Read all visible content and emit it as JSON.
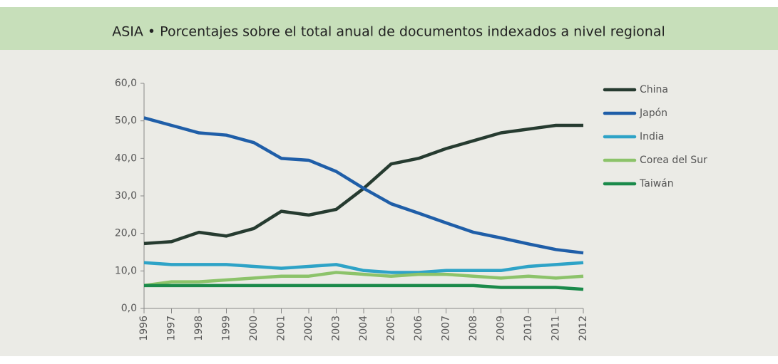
{
  "chart_data": {
    "type": "line",
    "title": "ASIA • Porcentajes sobre el total anual de documentos indexados a nivel regional",
    "categories": [
      "1996",
      "1997",
      "1998",
      "1999",
      "2000",
      "2001",
      "2002",
      "2003",
      "2004",
      "2005",
      "2006",
      "2007",
      "2008",
      "2009",
      "2010",
      "2011",
      "2012"
    ],
    "series": [
      {
        "name": "China",
        "color": "#263b30",
        "values": [
          17.3,
          17.8,
          20.3,
          19.3,
          21.3,
          25.9,
          24.9,
          26.4,
          32,
          38.5,
          40,
          42.6,
          44.7,
          46.8,
          47.8,
          48.8,
          48.8
        ]
      },
      {
        "name": "Japón",
        "color": "#1f5ea8",
        "values": [
          50.8,
          48.8,
          46.8,
          46.2,
          44.2,
          40,
          39.5,
          36.5,
          32,
          27.9,
          25.4,
          22.8,
          20.3,
          18.8,
          17.2,
          15.7,
          14.8
        ]
      },
      {
        "name": "India",
        "color": "#2ea3c7",
        "values": [
          12.2,
          11.7,
          11.7,
          11.7,
          11.2,
          10.7,
          11.2,
          11.7,
          10.1,
          9.6,
          9.6,
          10.1,
          10.1,
          10.1,
          11.2,
          11.7,
          12.2
        ]
      },
      {
        "name": "Corea del Sur",
        "color": "#8cc36a",
        "values": [
          6.1,
          7.1,
          7.1,
          7.6,
          8.1,
          8.6,
          8.6,
          9.6,
          9.1,
          8.6,
          9.1,
          9.1,
          8.6,
          8.1,
          8.6,
          8.1,
          8.6
        ]
      },
      {
        "name": "Taiwán",
        "color": "#1a8a4a",
        "values": [
          6.1,
          6.1,
          6.1,
          6.1,
          6.1,
          6.1,
          6.1,
          6.1,
          6.1,
          6.1,
          6.1,
          6.1,
          6.1,
          5.6,
          5.6,
          5.6,
          5.1
        ]
      }
    ],
    "ylim": [
      0,
      60
    ],
    "yticks": [
      {
        "value": 0,
        "label": "0,0"
      },
      {
        "value": 10,
        "label": "10,0"
      },
      {
        "value": 20,
        "label": "20,0"
      },
      {
        "value": 30,
        "label": "30,0"
      },
      {
        "value": 40,
        "label": "40,0"
      },
      {
        "value": 50,
        "label": "50,0"
      },
      {
        "value": 60,
        "label": "60,0"
      }
    ],
    "grid": false,
    "legend": "right"
  }
}
